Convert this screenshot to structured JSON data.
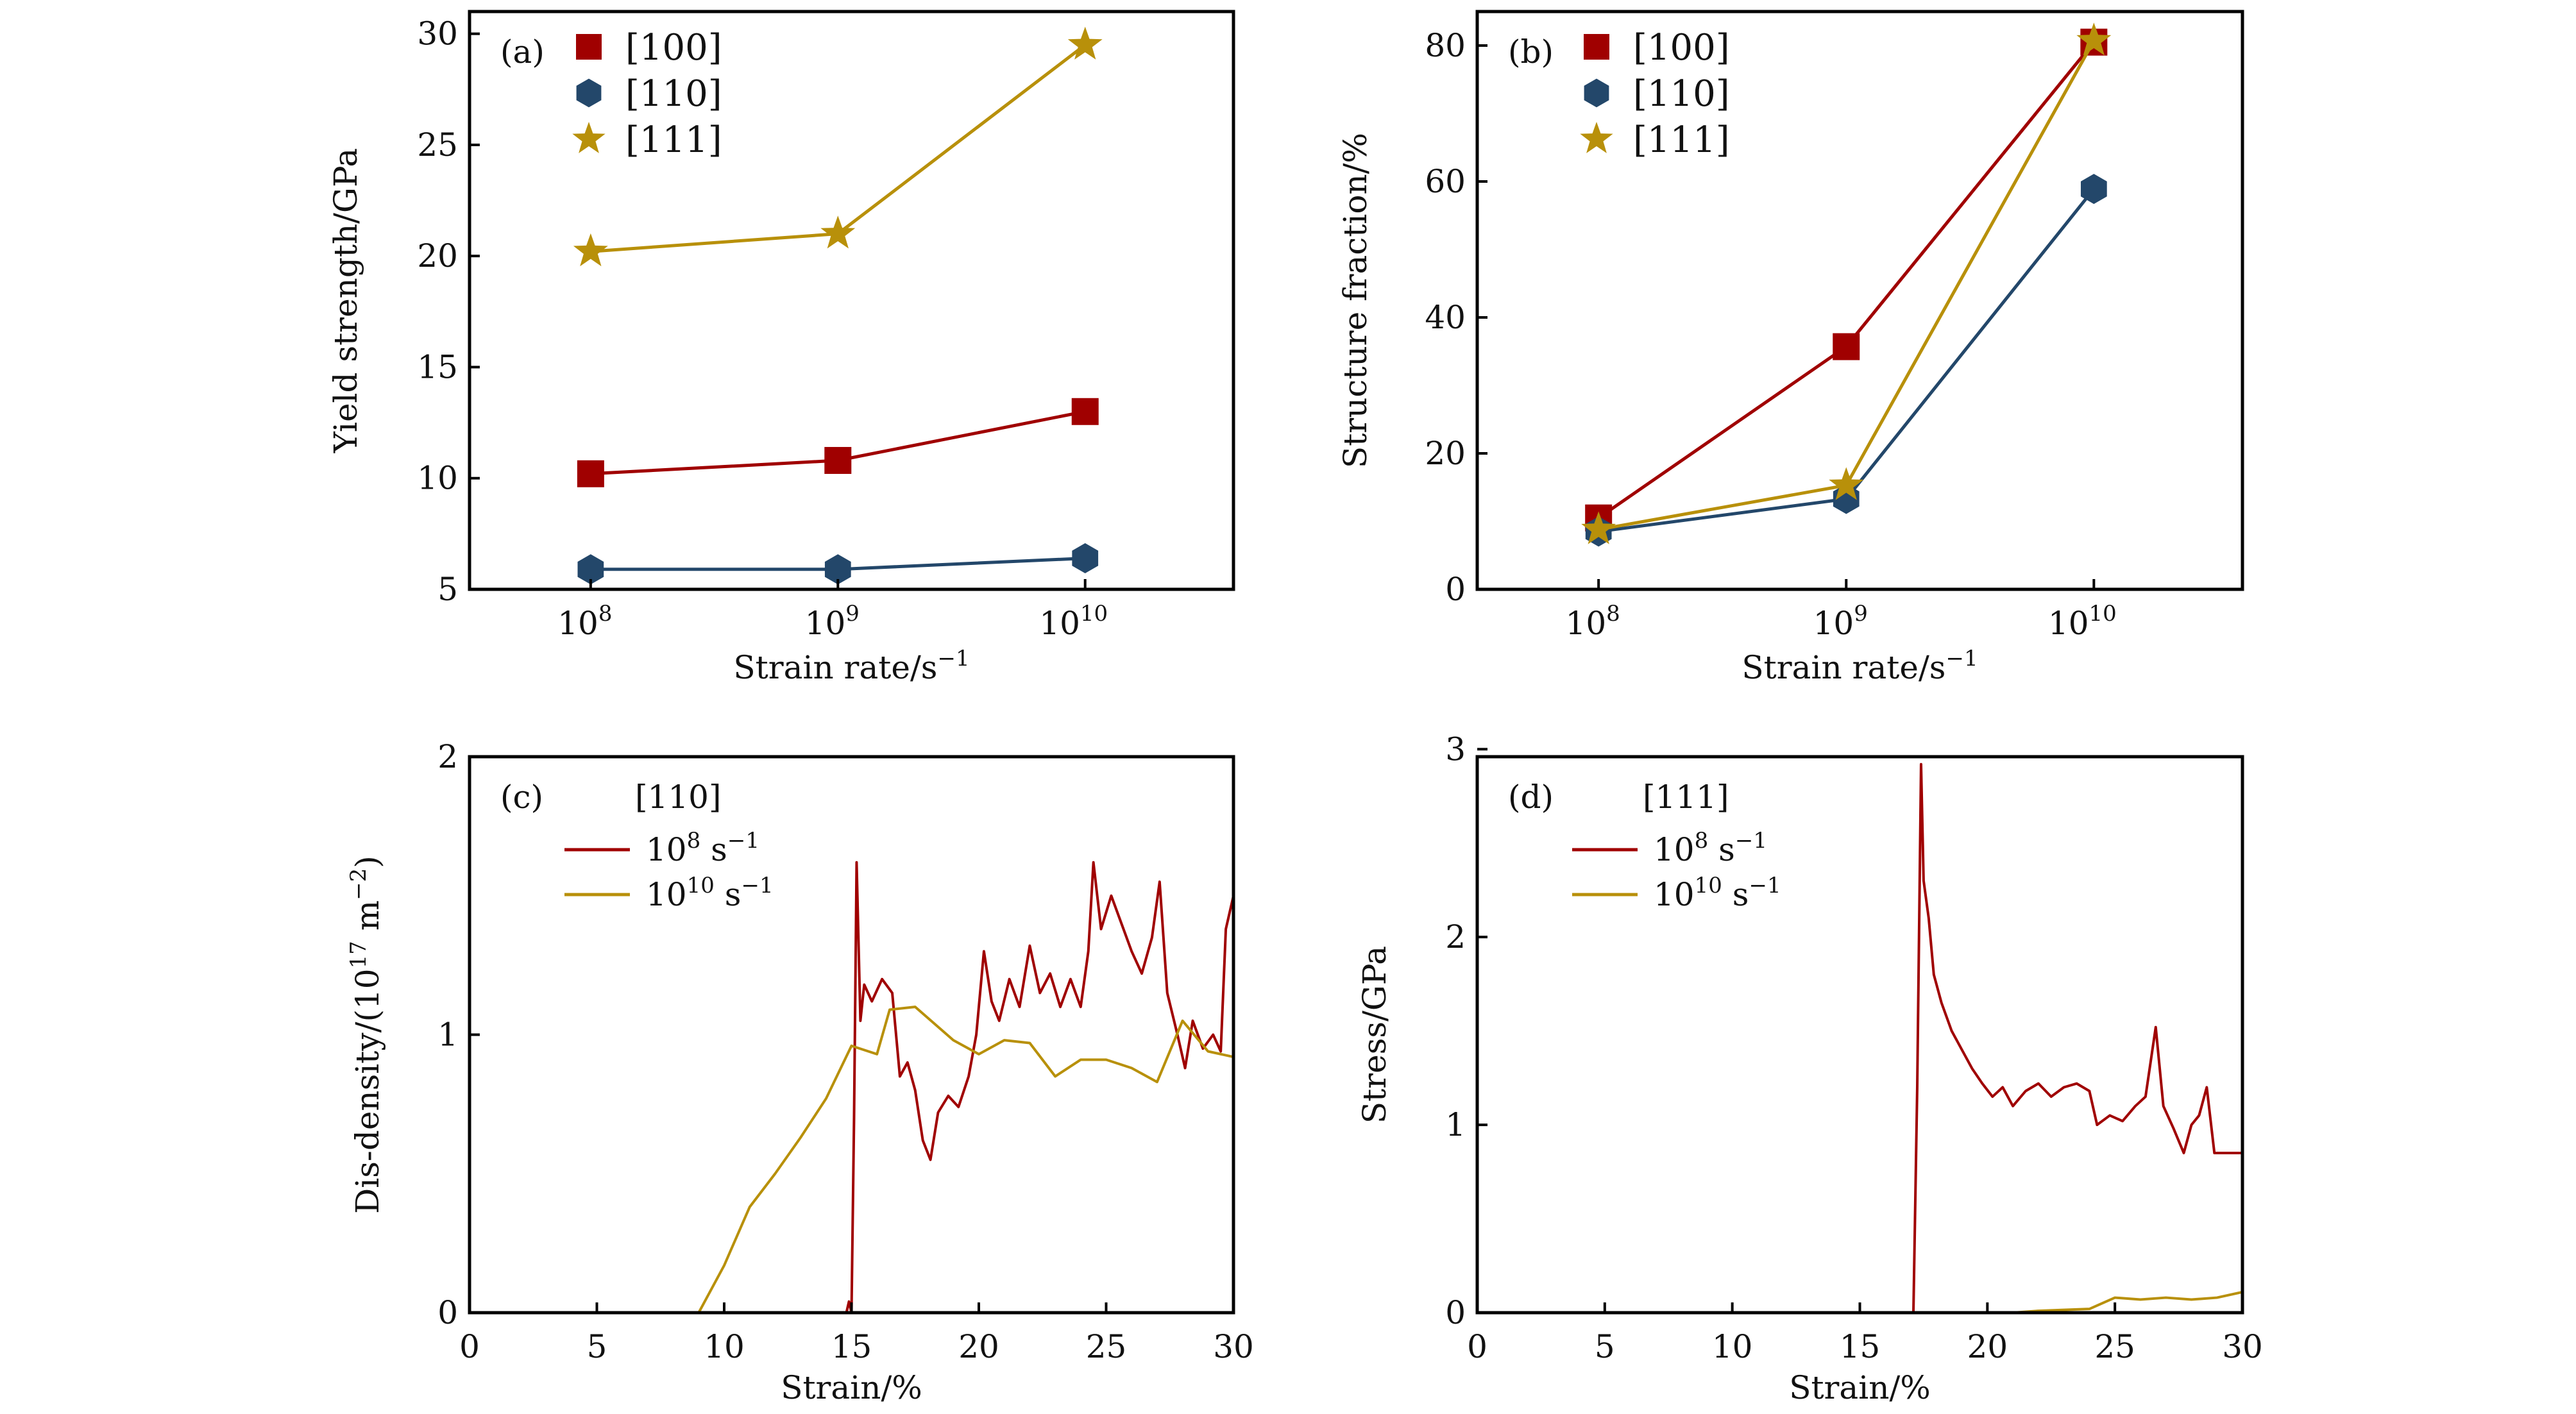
{
  "colors": {
    "c100": "#a00000",
    "c110": "#23476a",
    "c111": "#b8900a",
    "axis": "#000000"
  },
  "chart_data": [
    {
      "panel": "(a)",
      "type": "line",
      "xscale": "log",
      "xlim": [
        7.51,
        10.6
      ],
      "ylim": [
        5,
        31
      ],
      "x": [
        8,
        9,
        10
      ],
      "xticks": [
        {
          "base": "10",
          "exp": "8",
          "v": 8
        },
        {
          "base": "10",
          "exp": "9",
          "v": 9
        },
        {
          "base": "10",
          "exp": "10",
          "v": 10
        }
      ],
      "yticks": [
        5,
        10,
        15,
        20,
        25,
        30
      ],
      "xlabel": [
        {
          "t": "Strain rate/s"
        },
        {
          "sup": "−1"
        }
      ],
      "ylabel": [
        {
          "t": "Yield strength/GPa"
        }
      ],
      "legend": {
        "placement": "top-left",
        "title": "",
        "style": "markers"
      },
      "series": [
        {
          "name": "[100]",
          "color": "#a00000",
          "marker": "square",
          "values": [
            10.2,
            10.8,
            13.0
          ]
        },
        {
          "name": "[110]",
          "color": "#23476a",
          "marker": "hexagon",
          "values": [
            5.9,
            5.9,
            6.4
          ]
        },
        {
          "name": "[111]",
          "color": "#b8900a",
          "marker": "star",
          "values": [
            20.2,
            21.0,
            29.5
          ]
        }
      ]
    },
    {
      "panel": "(b)",
      "type": "line",
      "xscale": "log",
      "xlim": [
        7.51,
        10.6
      ],
      "ylim": [
        0,
        85
      ],
      "x": [
        8,
        9,
        10
      ],
      "xticks": [
        {
          "base": "10",
          "exp": "8",
          "v": 8
        },
        {
          "base": "10",
          "exp": "9",
          "v": 9
        },
        {
          "base": "10",
          "exp": "10",
          "v": 10
        }
      ],
      "yticks": [
        0,
        20,
        40,
        60,
        80
      ],
      "xlabel": [
        {
          "t": "Strain rate/s"
        },
        {
          "sup": "−1"
        }
      ],
      "ylabel": [
        {
          "t": "Structure fraction/%"
        }
      ],
      "legend": {
        "placement": "top-left",
        "title": "",
        "style": "markers"
      },
      "series": [
        {
          "name": "[100]",
          "color": "#a00000",
          "marker": "square",
          "values": [
            10.5,
            35.7,
            80.5
          ]
        },
        {
          "name": "[110]",
          "color": "#23476a",
          "marker": "hexagon",
          "values": [
            8.5,
            13.3,
            58.9
          ]
        },
        {
          "name": "[111]",
          "color": "#b8900a",
          "marker": "star",
          "values": [
            8.8,
            15.3,
            80.7
          ]
        }
      ]
    },
    {
      "panel": "(c)",
      "type": "line",
      "xscale": "linear",
      "xlim": [
        0,
        30
      ],
      "ylim": [
        0,
        2
      ],
      "xticks": [
        {
          "base": "0",
          "v": 0
        },
        {
          "base": "5",
          "v": 5
        },
        {
          "base": "10",
          "v": 10
        },
        {
          "base": "15",
          "v": 15
        },
        {
          "base": "20",
          "v": 20
        },
        {
          "base": "25",
          "v": 25
        },
        {
          "base": "30",
          "v": 30
        }
      ],
      "yticks": [
        0,
        1,
        2
      ],
      "xlabel": [
        {
          "t": "Strain/%"
        }
      ],
      "ylabel": [
        {
          "t": "Dis-density/(10"
        },
        {
          "sup": "17"
        },
        {
          "t": " m"
        },
        {
          "sup": "−2"
        },
        {
          "t": ")"
        }
      ],
      "legend": {
        "placement": "top-left",
        "title": "[110]",
        "style": "lines"
      },
      "series": [
        {
          "name": [
            {
              "t": "10"
            },
            {
              "sup": "8"
            },
            {
              "t": " s"
            },
            {
              "sup": "−1"
            }
          ],
          "color": "#a00000",
          "points": [
            [
              0,
              0
            ],
            [
              14.8,
              0
            ],
            [
              14.9,
              0.04
            ],
            [
              15.0,
              0
            ],
            [
              15.1,
              0.7
            ],
            [
              15.2,
              1.62
            ],
            [
              15.35,
              1.05
            ],
            [
              15.5,
              1.18
            ],
            [
              15.8,
              1.12
            ],
            [
              16.2,
              1.2
            ],
            [
              16.6,
              1.15
            ],
            [
              16.9,
              0.85
            ],
            [
              17.2,
              0.9
            ],
            [
              17.5,
              0.8
            ],
            [
              17.8,
              0.62
            ],
            [
              18.1,
              0.55
            ],
            [
              18.4,
              0.72
            ],
            [
              18.8,
              0.78
            ],
            [
              19.2,
              0.74
            ],
            [
              19.6,
              0.85
            ],
            [
              19.9,
              1.0
            ],
            [
              20.2,
              1.3
            ],
            [
              20.5,
              1.12
            ],
            [
              20.8,
              1.05
            ],
            [
              21.2,
              1.2
            ],
            [
              21.6,
              1.1
            ],
            [
              22.0,
              1.32
            ],
            [
              22.4,
              1.15
            ],
            [
              22.8,
              1.22
            ],
            [
              23.2,
              1.1
            ],
            [
              23.6,
              1.2
            ],
            [
              24.0,
              1.1
            ],
            [
              24.3,
              1.3
            ],
            [
              24.5,
              1.62
            ],
            [
              24.8,
              1.38
            ],
            [
              25.2,
              1.5
            ],
            [
              25.6,
              1.4
            ],
            [
              26.0,
              1.3
            ],
            [
              26.4,
              1.22
            ],
            [
              26.8,
              1.35
            ],
            [
              27.1,
              1.55
            ],
            [
              27.4,
              1.15
            ],
            [
              27.8,
              1.0
            ],
            [
              28.1,
              0.88
            ],
            [
              28.4,
              1.05
            ],
            [
              28.8,
              0.95
            ],
            [
              29.2,
              1.0
            ],
            [
              29.5,
              0.94
            ],
            [
              29.7,
              1.38
            ],
            [
              30.0,
              1.5
            ]
          ]
        },
        {
          "name": [
            {
              "t": "10"
            },
            {
              "sup": "10"
            },
            {
              "t": " s"
            },
            {
              "sup": "−1"
            }
          ],
          "color": "#b8900a",
          "points": [
            [
              0,
              0
            ],
            [
              9,
              0
            ],
            [
              10,
              0.17
            ],
            [
              11,
              0.38
            ],
            [
              12,
              0.5
            ],
            [
              13,
              0.63
            ],
            [
              14,
              0.77
            ],
            [
              15,
              0.96
            ],
            [
              16,
              0.93
            ],
            [
              16.5,
              1.09
            ],
            [
              17.5,
              1.1
            ],
            [
              19,
              0.98
            ],
            [
              20,
              0.93
            ],
            [
              21,
              0.98
            ],
            [
              22,
              0.97
            ],
            [
              23,
              0.85
            ],
            [
              24,
              0.91
            ],
            [
              25,
              0.91
            ],
            [
              26,
              0.88
            ],
            [
              27,
              0.83
            ],
            [
              28,
              1.05
            ],
            [
              29,
              0.94
            ],
            [
              30,
              0.92
            ]
          ]
        }
      ]
    },
    {
      "panel": "(d)",
      "type": "line",
      "xscale": "linear",
      "xlim": [
        0,
        30
      ],
      "ylim": [
        0,
        2.96
      ],
      "xticks": [
        {
          "base": "0",
          "v": 0
        },
        {
          "base": "5",
          "v": 5
        },
        {
          "base": "10",
          "v": 10
        },
        {
          "base": "15",
          "v": 15
        },
        {
          "base": "20",
          "v": 20
        },
        {
          "base": "25",
          "v": 25
        },
        {
          "base": "30",
          "v": 30
        }
      ],
      "yticks": [
        0,
        1,
        2,
        3
      ],
      "xlabel": [
        {
          "t": "Strain/%"
        }
      ],
      "ylabel": [
        {
          "t": "Stress/GPa"
        }
      ],
      "legend": {
        "placement": "top-left",
        "title": "[111]",
        "style": "lines"
      },
      "series": [
        {
          "name": [
            {
              "t": "10"
            },
            {
              "sup": "8"
            },
            {
              "t": " s"
            },
            {
              "sup": "−1"
            }
          ],
          "color": "#a00000",
          "points": [
            [
              0,
              0
            ],
            [
              17.1,
              0
            ],
            [
              17.25,
              1.2
            ],
            [
              17.4,
              2.92
            ],
            [
              17.5,
              2.3
            ],
            [
              17.7,
              2.1
            ],
            [
              17.9,
              1.8
            ],
            [
              18.2,
              1.65
            ],
            [
              18.6,
              1.5
            ],
            [
              19.0,
              1.4
            ],
            [
              19.4,
              1.3
            ],
            [
              19.8,
              1.22
            ],
            [
              20.2,
              1.15
            ],
            [
              20.6,
              1.2
            ],
            [
              21.0,
              1.1
            ],
            [
              21.5,
              1.18
            ],
            [
              22.0,
              1.22
            ],
            [
              22.5,
              1.15
            ],
            [
              23.0,
              1.2
            ],
            [
              23.5,
              1.22
            ],
            [
              24.0,
              1.18
            ],
            [
              24.3,
              1.0
            ],
            [
              24.8,
              1.05
            ],
            [
              25.3,
              1.02
            ],
            [
              25.8,
              1.1
            ],
            [
              26.2,
              1.15
            ],
            [
              26.6,
              1.52
            ],
            [
              26.9,
              1.1
            ],
            [
              27.3,
              0.98
            ],
            [
              27.7,
              0.85
            ],
            [
              28.0,
              1.0
            ],
            [
              28.3,
              1.05
            ],
            [
              28.6,
              1.2
            ],
            [
              28.9,
              0.85
            ],
            [
              29.2,
              0.85
            ],
            [
              30.0,
              0.85
            ]
          ]
        },
        {
          "name": [
            {
              "t": "10"
            },
            {
              "sup": "10"
            },
            {
              "t": " s"
            },
            {
              "sup": "−1"
            }
          ],
          "color": "#b8900a",
          "points": [
            [
              0,
              0
            ],
            [
              21,
              0
            ],
            [
              22,
              0.01
            ],
            [
              24,
              0.02
            ],
            [
              25,
              0.08
            ],
            [
              26,
              0.07
            ],
            [
              27,
              0.08
            ],
            [
              28,
              0.07
            ],
            [
              29,
              0.08
            ],
            [
              30,
              0.11
            ]
          ]
        }
      ]
    }
  ]
}
